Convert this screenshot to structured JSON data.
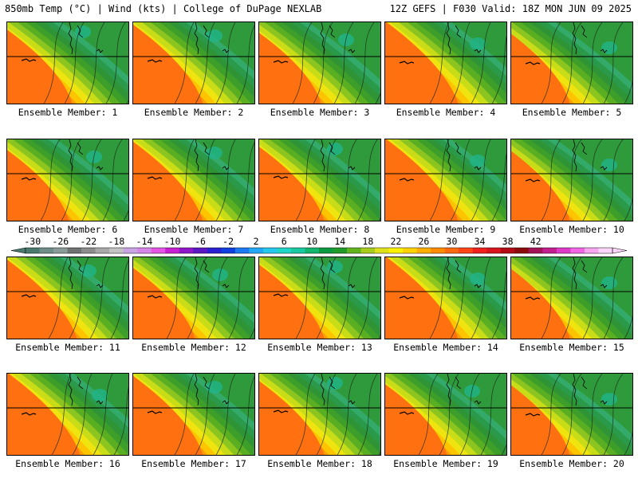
{
  "header": {
    "left": "850mb Temp (°C) | Wind (kts) | College of DuPage NEXLAB",
    "right": "12Z GEFS | F030 Valid: 18Z MON JUN 09 2025"
  },
  "members": [
    {
      "label": "Ensemble Member: 1",
      "variant": 0
    },
    {
      "label": "Ensemble Member: 2",
      "variant": 1
    },
    {
      "label": "Ensemble Member: 3",
      "variant": 2
    },
    {
      "label": "Ensemble Member: 4",
      "variant": 3
    },
    {
      "label": "Ensemble Member: 5",
      "variant": 4
    },
    {
      "label": "Ensemble Member: 6",
      "variant": 2
    },
    {
      "label": "Ensemble Member: 7",
      "variant": 1
    },
    {
      "label": "Ensemble Member: 8",
      "variant": 0
    },
    {
      "label": "Ensemble Member: 9",
      "variant": 3
    },
    {
      "label": "Ensemble Member: 10",
      "variant": 4
    },
    {
      "label": "Ensemble Member: 11",
      "variant": 1
    },
    {
      "label": "Ensemble Member: 12",
      "variant": 2
    },
    {
      "label": "Ensemble Member: 13",
      "variant": 0
    },
    {
      "label": "Ensemble Member: 14",
      "variant": 3
    },
    {
      "label": "Ensemble Member: 15",
      "variant": 4
    },
    {
      "label": "Ensemble Member: 16",
      "variant": 3
    },
    {
      "label": "Ensemble Member: 17",
      "variant": 1
    },
    {
      "label": "Ensemble Member: 18",
      "variant": 0
    },
    {
      "label": "Ensemble Member: 19",
      "variant": 2
    },
    {
      "label": "Ensemble Member: 20",
      "variant": 4
    }
  ],
  "colorbar": {
    "ticks": [
      "-30",
      "-26",
      "-22",
      "-18",
      "-14",
      "-10",
      "-6",
      "-2",
      "2",
      "6",
      "10",
      "14",
      "18",
      "22",
      "26",
      "30",
      "34",
      "38",
      "42"
    ],
    "colors": [
      "#4a7a6e",
      "#6f8c88",
      "#8a9a98",
      "#6e7272",
      "#8c8c8c",
      "#a9a9a9",
      "#c3c3c3",
      "#c9a3e3",
      "#d686e8",
      "#e455e6",
      "#c81fd2",
      "#8d17c8",
      "#5a17c2",
      "#2a1fd2",
      "#1040e0",
      "#1c78f0",
      "#22a8f4",
      "#25c8ec",
      "#1ed6c8",
      "#19c9a2",
      "#12b46e",
      "#0c9a40",
      "#209a28",
      "#62b41e",
      "#a8cc1c",
      "#dfe21a",
      "#fff200",
      "#ffd200",
      "#ffae00",
      "#ff8c00",
      "#ff6a10",
      "#ff4418",
      "#f0201c",
      "#d8141c",
      "#b40c14",
      "#8c0a0c",
      "#a41258",
      "#c21e90",
      "#de3ac8",
      "#f266e6",
      "#f8a6f2",
      "#fcd6fa"
    ]
  }
}
